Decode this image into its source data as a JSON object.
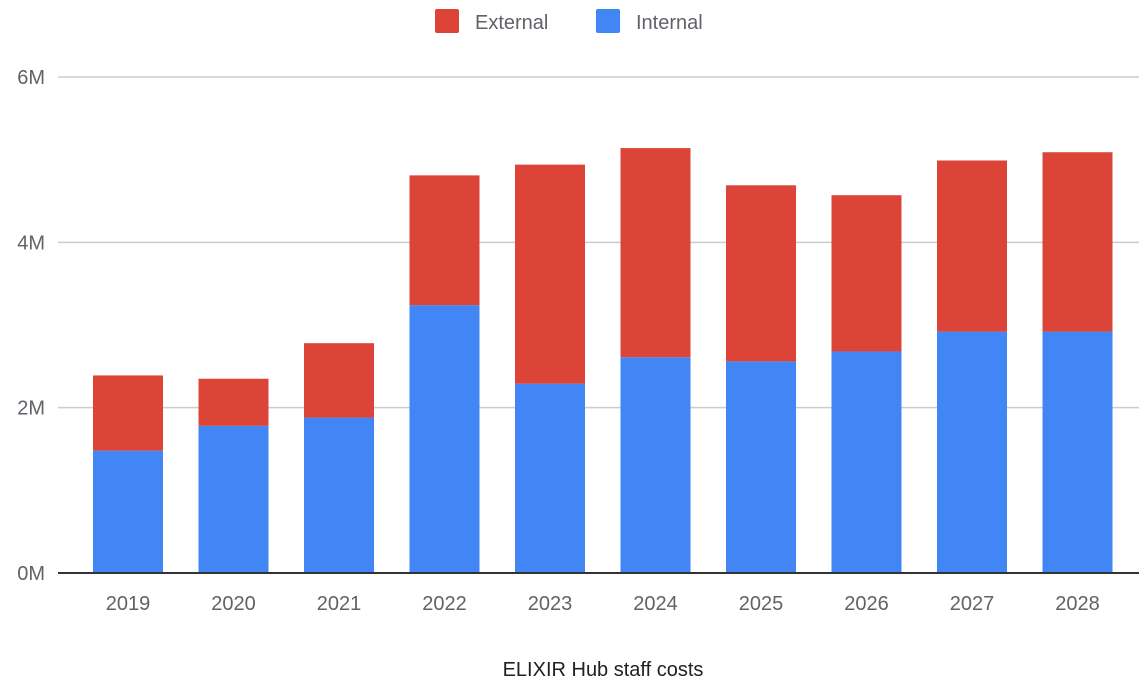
{
  "chart_data": {
    "type": "bar",
    "stacked": true,
    "title": "",
    "xlabel": "ELIXIR Hub staff costs",
    "ylabel": "",
    "categories": [
      "2019",
      "2020",
      "2021",
      "2022",
      "2023",
      "2024",
      "2025",
      "2026",
      "2027",
      "2028"
    ],
    "series": [
      {
        "name": "Internal",
        "color": "#4285f4",
        "values": [
          1.48,
          1.78,
          1.88,
          3.24,
          2.29,
          2.61,
          2.56,
          2.68,
          2.92,
          2.92
        ]
      },
      {
        "name": "External",
        "color": "#db4437",
        "values": [
          0.91,
          0.57,
          0.9,
          1.57,
          2.65,
          2.53,
          2.13,
          1.89,
          2.07,
          2.17
        ]
      }
    ],
    "ylim": [
      0,
      6
    ],
    "yticks": [
      {
        "value": 0,
        "label": "0M"
      },
      {
        "value": 2,
        "label": "2M"
      },
      {
        "value": 4,
        "label": "4M"
      },
      {
        "value": 6,
        "label": "6M"
      }
    ],
    "legend": {
      "position": "top",
      "entries": [
        {
          "name": "External",
          "color": "#db4437"
        },
        {
          "name": "Internal",
          "color": "#4285f4"
        }
      ]
    },
    "grid": true,
    "gridline_color": "#cccccc",
    "baseline_color": "#333333"
  }
}
